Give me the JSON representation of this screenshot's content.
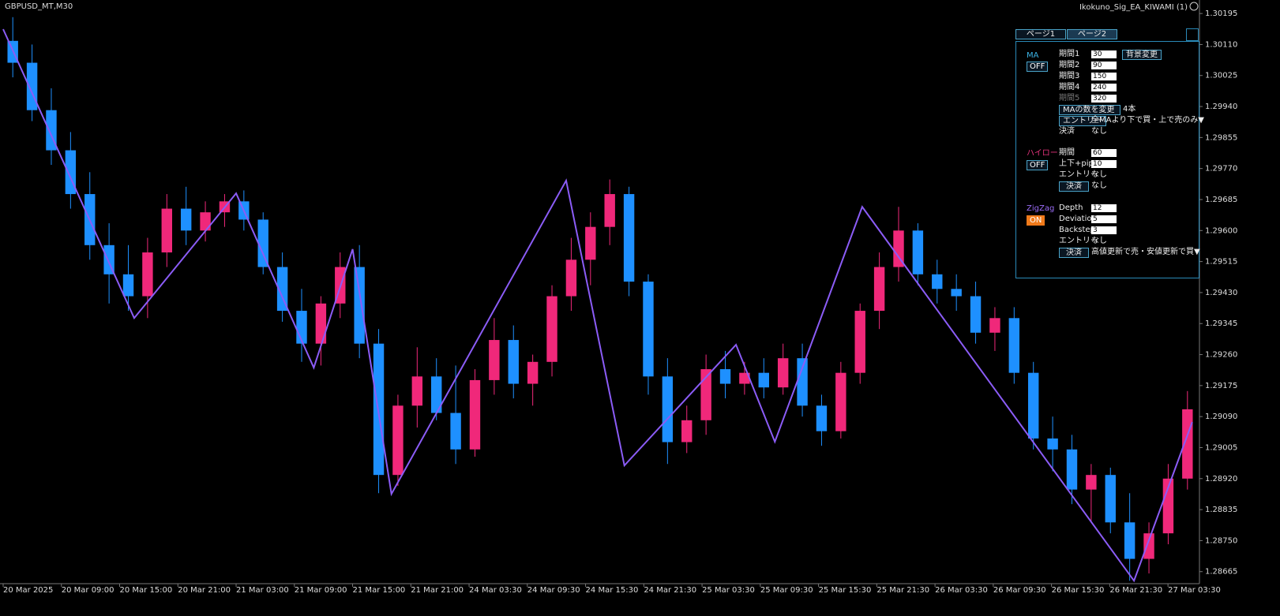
{
  "header": {
    "symbol": "GBPUSD_MT,M30",
    "ea_name": "Ikokuno_Sig_EA_KIWAMI (1)"
  },
  "chart_data": {
    "type": "candlestick",
    "colors": {
      "up": "#f0287a",
      "down": "#1e90ff",
      "zigzag": "#8b5cf6"
    },
    "xlim": [
      0,
      246
    ],
    "ylim": [
      1.28632,
      1.30232
    ],
    "yticks": [
      1.30195,
      {
        "value": 1.3011,
        "label": "1.30110"
      },
      1.30025,
      {
        "value": 1.2994,
        "label": "1.29940"
      },
      1.29855,
      {
        "value": 1.2977,
        "label": "1.29770"
      },
      1.29685,
      {
        "value": 1.296,
        "label": "1.29600"
      },
      1.29515,
      {
        "value": 1.2943,
        "label": "1.29430"
      },
      1.29345,
      {
        "value": 1.2926,
        "label": "1.29260"
      },
      1.29175,
      {
        "value": 1.2909,
        "label": "1.29090"
      },
      1.29005,
      {
        "value": 1.2892,
        "label": "1.28920"
      },
      1.28835,
      {
        "value": 1.2875,
        "label": "1.28750"
      },
      1.28665
    ],
    "xticks": [
      {
        "value": 0,
        "label": "20 Mar 2025"
      },
      {
        "value": 12,
        "label": "20 Mar 09:00"
      },
      {
        "value": 24,
        "label": "20 Mar 15:00"
      },
      {
        "value": 36,
        "label": "20 Mar 21:00"
      },
      {
        "value": 48,
        "label": "21 Mar 03:00"
      },
      {
        "value": 60,
        "label": "21 Mar 09:00"
      },
      {
        "value": 72,
        "label": "21 Mar 15:00"
      },
      {
        "value": 84,
        "label": "21 Mar 21:00"
      },
      {
        "value": 96,
        "label": "24 Mar 03:30"
      },
      {
        "value": 108,
        "label": "24 Mar 09:30"
      },
      {
        "value": 120,
        "label": "24 Mar 15:30"
      },
      {
        "value": 132,
        "label": "24 Mar 21:30"
      },
      {
        "value": 144,
        "label": "25 Mar 03:30"
      },
      {
        "value": 156,
        "label": "25 Mar 09:30"
      },
      {
        "value": 168,
        "label": "25 Mar 15:30"
      },
      {
        "value": 180,
        "label": "25 Mar 21:30"
      },
      {
        "value": 192,
        "label": "26 Mar 03:30"
      },
      {
        "value": 204,
        "label": "26 Mar 09:30"
      },
      {
        "value": 216,
        "label": "26 Mar 15:30"
      },
      {
        "value": 228,
        "label": "26 Mar 21:30"
      },
      {
        "value": 240,
        "label": "27 Mar 03:30"
      }
    ],
    "candles": [
      [
        1.3012,
        1.30185,
        1.3002,
        1.3006
      ],
      [
        1.3006,
        1.3011,
        1.299,
        1.2993
      ],
      [
        1.2993,
        1.2999,
        1.2978,
        1.2982
      ],
      [
        1.2982,
        1.2987,
        1.2966,
        1.297
      ],
      [
        1.297,
        1.2976,
        1.2952,
        1.2956
      ],
      [
        1.2956,
        1.2962,
        1.294,
        1.2948
      ],
      [
        1.2948,
        1.2956,
        1.2938,
        1.2942
      ],
      [
        1.2942,
        1.2958,
        1.2936,
        1.2954
      ],
      [
        1.2954,
        1.297,
        1.295,
        1.2966
      ],
      [
        1.2966,
        1.2972,
        1.2956,
        1.296
      ],
      [
        1.296,
        1.2968,
        1.2957,
        1.2965
      ],
      [
        1.2965,
        1.297,
        1.2961,
        1.2968
      ],
      [
        1.2968,
        1.2971,
        1.296,
        1.2963
      ],
      [
        1.2963,
        1.2965,
        1.2948,
        1.295
      ],
      [
        1.295,
        1.2954,
        1.2935,
        1.2938
      ],
      [
        1.2938,
        1.2944,
        1.2924,
        1.2929
      ],
      [
        1.2929,
        1.2942,
        1.2923,
        1.294
      ],
      [
        1.294,
        1.2954,
        1.2936,
        1.295
      ],
      [
        1.295,
        1.2956,
        1.2925,
        1.2929
      ],
      [
        1.2929,
        1.2933,
        1.2888,
        1.2893
      ],
      [
        1.2893,
        1.2915,
        1.289,
        1.2912
      ],
      [
        1.2912,
        1.2928,
        1.2906,
        1.292
      ],
      [
        1.292,
        1.2925,
        1.2908,
        1.291
      ],
      [
        1.291,
        1.2923,
        1.2896,
        1.29
      ],
      [
        1.29,
        1.2922,
        1.2898,
        1.2919
      ],
      [
        1.2919,
        1.2936,
        1.2915,
        1.293
      ],
      [
        1.293,
        1.2934,
        1.2914,
        1.2918
      ],
      [
        1.2918,
        1.2926,
        1.2912,
        1.2924
      ],
      [
        1.2924,
        1.2945,
        1.292,
        1.2942
      ],
      [
        1.2942,
        1.2958,
        1.2938,
        1.2952
      ],
      [
        1.2952,
        1.2965,
        1.2945,
        1.2961
      ],
      [
        1.2961,
        1.2974,
        1.2956,
        1.297
      ],
      [
        1.297,
        1.2972,
        1.2942,
        1.2946
      ],
      [
        1.2946,
        1.2948,
        1.2915,
        1.292
      ],
      [
        1.292,
        1.2925,
        1.2896,
        1.2902
      ],
      [
        1.2902,
        1.2912,
        1.2899,
        1.2908
      ],
      [
        1.2908,
        1.2926,
        1.2904,
        1.2922
      ],
      [
        1.2922,
        1.2927,
        1.2914,
        1.2918
      ],
      [
        1.2918,
        1.2924,
        1.2915,
        1.2921
      ],
      [
        1.2921,
        1.2925,
        1.2914,
        1.2917
      ],
      [
        1.2917,
        1.2929,
        1.2915,
        1.2925
      ],
      [
        1.2925,
        1.2929,
        1.2909,
        1.2912
      ],
      [
        1.2912,
        1.2915,
        1.2901,
        1.2905
      ],
      [
        1.2905,
        1.2924,
        1.2903,
        1.2921
      ],
      [
        1.2921,
        1.294,
        1.2918,
        1.2938
      ],
      [
        1.2938,
        1.2954,
        1.2933,
        1.295
      ],
      [
        1.295,
        1.29665,
        1.2946,
        1.296
      ],
      [
        1.296,
        1.2962,
        1.2945,
        1.2948
      ],
      [
        1.2948,
        1.2952,
        1.294,
        1.2944
      ],
      [
        1.2944,
        1.2948,
        1.2938,
        1.2942
      ],
      [
        1.2942,
        1.2946,
        1.2929,
        1.2932
      ],
      [
        1.2932,
        1.2939,
        1.2927,
        1.2936
      ],
      [
        1.2936,
        1.2939,
        1.2918,
        1.2921
      ],
      [
        1.2921,
        1.2924,
        1.29,
        1.2903
      ],
      [
        1.2903,
        1.2909,
        1.2894,
        1.29
      ],
      [
        1.29,
        1.2904,
        1.2885,
        1.2889
      ],
      [
        1.2889,
        1.2896,
        1.288,
        1.2893
      ],
      [
        1.2893,
        1.2895,
        1.2877,
        1.288
      ],
      [
        1.288,
        1.2888,
        1.2864,
        1.287
      ],
      [
        1.287,
        1.288,
        1.2866,
        1.2877
      ],
      [
        1.2877,
        1.2896,
        1.2874,
        1.2892
      ],
      [
        1.2892,
        1.2916,
        1.2889,
        1.2911
      ]
    ],
    "zigzag": {
      "x": [
        0,
        27,
        48,
        64,
        72,
        80,
        116,
        128,
        151,
        159,
        177,
        233,
        245
      ],
      "y": [
        1.30152,
        1.2936,
        1.29702,
        1.29224,
        1.29549,
        1.28878,
        1.29737,
        1.28956,
        1.29287,
        1.29021,
        1.29665,
        1.2864,
        1.29075
      ]
    }
  },
  "panel": {
    "tabs": [
      "ページ1",
      "ページ2"
    ],
    "ma": {
      "title": "MA",
      "state": "OFF",
      "bg_button": "背景変更",
      "rows": [
        [
          "期間1",
          "30"
        ],
        [
          "期間2",
          "90"
        ],
        [
          "期間3",
          "150"
        ],
        [
          "期間4",
          "240"
        ],
        [
          "期間5",
          "320"
        ]
      ],
      "count_button": "MAの数を変更",
      "count": "4本",
      "entry_button": "エントリー",
      "entry": "全MAより下で買・上で売のみ▼",
      "exit_label": "決済",
      "exit": "なし"
    },
    "hilo": {
      "title": "ハイロー",
      "state": "OFF",
      "rows": [
        [
          "期間",
          "60"
        ],
        [
          "上下+pip",
          "10"
        ]
      ],
      "entry_label": "エントリー",
      "entry": "なし",
      "exit_button": "決済",
      "exit": "なし"
    },
    "zigzag": {
      "title": "ZigZag",
      "state": "ON",
      "rows": [
        [
          "Depth",
          "12"
        ],
        [
          "Deviation",
          "5"
        ],
        [
          "Backstep",
          "3"
        ]
      ],
      "entry_label": "エントリー",
      "entry": "なし",
      "exit_button": "決済",
      "exit": "高値更新で売・安値更新で買▼"
    }
  }
}
